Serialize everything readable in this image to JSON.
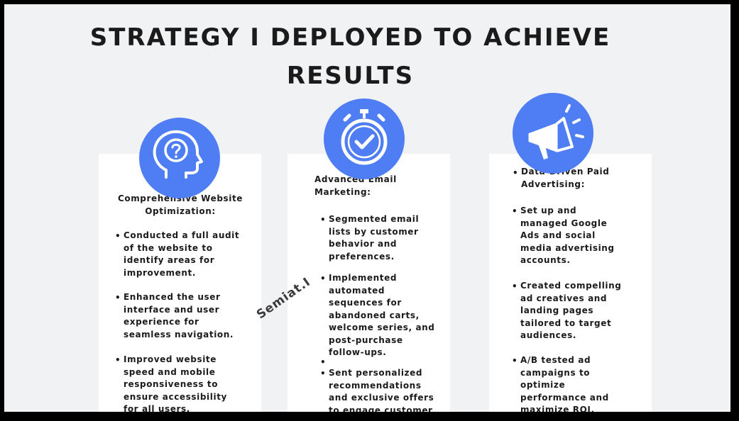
{
  "title_line1": "STRATEGY I DEPLOYED TO ACHIEVE",
  "title_line2": "RESULTS",
  "accent_color": "#4f7df3",
  "cards": [
    {
      "icon": "head-question-icon",
      "heading_l1": "Comprehensive Website",
      "heading_l2": "Optimization:",
      "items": [
        [
          "Conducted a full audit",
          "of the website to",
          "identify areas for",
          "improvement."
        ],
        [
          "Enhanced the user",
          "interface and user",
          "experience for",
          "seamless navigation."
        ],
        [
          "Improved website",
          "speed and mobile",
          "responsiveness to",
          "ensure accessibility",
          "for all users."
        ]
      ]
    },
    {
      "icon": "stopwatch-check-icon",
      "heading_l1": "Advanced Email",
      "heading_l2": "Marketing:",
      "items": [
        [
          "Segmented email",
          "lists by customer",
          "behavior and",
          "preferences."
        ],
        [
          "Implemented",
          "automated",
          "sequences for",
          "abandoned carts,",
          "welcome series, and",
          "post-purchase",
          "follow-ups."
        ],
        [
          "Sent personalized",
          "recommendations",
          "and exclusive offers",
          "to engage customer"
        ]
      ]
    },
    {
      "icon": "megaphone-icon",
      "heading_l1": "Data-Driven Paid",
      "heading_l2": "Advertising:",
      "items": [
        [
          "Set up and",
          "managed Google",
          "Ads and social",
          "media advertising",
          "accounts."
        ],
        [
          "Created compelling",
          "ad creatives and",
          "landing pages",
          "tailored to target",
          "audiences."
        ],
        [
          "A/B tested ad",
          "campaigns to",
          "optimize",
          "performance and",
          "maximize ROI."
        ]
      ]
    }
  ],
  "watermark": "Semiat.I"
}
